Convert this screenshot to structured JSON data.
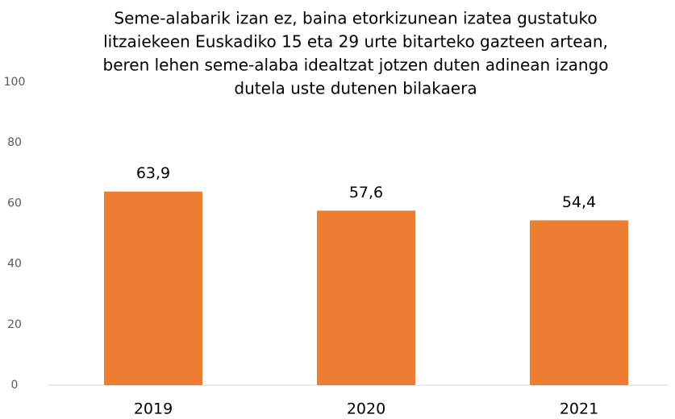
{
  "chart_data": {
    "type": "bar",
    "title": [
      "Seme-alabarik izan ez, baina etorkizunean izatea gustatuko",
      "litzaiekeen Euskadiko 15 eta 29 urte bitarteko gazteen artean,",
      "beren lehen seme-alaba idealtzat jotzen duten adinean izango",
      "dutela uste dutenen bilakaera"
    ],
    "categories": [
      "2019",
      "2020",
      "2021"
    ],
    "values": [
      63.9,
      57.6,
      54.4
    ],
    "value_labels": [
      "63,9",
      "57,6",
      "54,4"
    ],
    "color": "#ed7d31",
    "ylim": [
      0,
      100
    ],
    "yticks": [
      0,
      20,
      40,
      60,
      80,
      100
    ],
    "grid": false
  }
}
